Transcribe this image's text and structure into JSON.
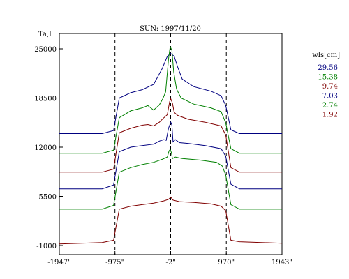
{
  "chart_data": {
    "type": "line",
    "title": "SUN: 1997/11/20",
    "ylabel": "Ta,I",
    "xlabel": "",
    "xlim": [
      -1947,
      1943
    ],
    "ylim": [
      -1000,
      25000
    ],
    "x_ticks": [
      {
        "value": -1947,
        "label": "-1947\""
      },
      {
        "value": -975,
        "label": "-975\""
      },
      {
        "value": -2,
        "label": "-2\""
      },
      {
        "value": 970,
        "label": "970\""
      },
      {
        "value": 1943,
        "label": "1943\""
      }
    ],
    "y_ticks": [
      {
        "value": 25000,
        "label": "25000"
      },
      {
        "value": 18500,
        "label": "18500"
      },
      {
        "value": 12000,
        "label": "12000"
      },
      {
        "value": 5500,
        "label": "5500"
      },
      {
        "value": -1000,
        "label": "-1000"
      }
    ],
    "vlines": [
      -975,
      -2,
      970
    ],
    "legend": {
      "title": "wls[cm]",
      "placement": "right"
    },
    "series": [
      {
        "name": "29.56",
        "color": "#000080",
        "points": [
          [
            -1947,
            13800
          ],
          [
            -1200,
            13800
          ],
          [
            -1000,
            14200
          ],
          [
            -900,
            18500
          ],
          [
            -700,
            19200
          ],
          [
            -500,
            19600
          ],
          [
            -300,
            20300
          ],
          [
            -150,
            22400
          ],
          [
            -60,
            24000
          ],
          [
            -2,
            24400
          ],
          [
            60,
            24000
          ],
          [
            120,
            22600
          ],
          [
            200,
            21000
          ],
          [
            400,
            20000
          ],
          [
            700,
            19400
          ],
          [
            880,
            18800
          ],
          [
            960,
            17500
          ],
          [
            1050,
            14300
          ],
          [
            1200,
            13800
          ],
          [
            1943,
            13800
          ]
        ]
      },
      {
        "name": "15.38",
        "color": "#008000",
        "points": [
          [
            -1947,
            11200
          ],
          [
            -1200,
            11200
          ],
          [
            -1000,
            11600
          ],
          [
            -900,
            15900
          ],
          [
            -700,
            16800
          ],
          [
            -500,
            17200
          ],
          [
            -400,
            17500
          ],
          [
            -300,
            16900
          ],
          [
            -200,
            17600
          ],
          [
            -140,
            18400
          ],
          [
            -90,
            19300
          ],
          [
            -40,
            23600
          ],
          [
            -10,
            25300
          ],
          [
            20,
            24800
          ],
          [
            50,
            22000
          ],
          [
            100,
            19700
          ],
          [
            180,
            18500
          ],
          [
            400,
            17700
          ],
          [
            700,
            17200
          ],
          [
            880,
            16700
          ],
          [
            960,
            15200
          ],
          [
            1050,
            11800
          ],
          [
            1200,
            11200
          ],
          [
            1943,
            11200
          ]
        ]
      },
      {
        "name": "9.74",
        "color": "#800000",
        "points": [
          [
            -1947,
            8700
          ],
          [
            -1200,
            8700
          ],
          [
            -1000,
            9100
          ],
          [
            -900,
            13900
          ],
          [
            -700,
            14500
          ],
          [
            -500,
            14900
          ],
          [
            -400,
            15000
          ],
          [
            -300,
            14800
          ],
          [
            -200,
            15300
          ],
          [
            -120,
            15900
          ],
          [
            -60,
            16300
          ],
          [
            -20,
            18000
          ],
          [
            0,
            18400
          ],
          [
            30,
            17800
          ],
          [
            60,
            16600
          ],
          [
            120,
            16200
          ],
          [
            300,
            15700
          ],
          [
            600,
            15300
          ],
          [
            880,
            14800
          ],
          [
            960,
            13600
          ],
          [
            1050,
            9300
          ],
          [
            1200,
            8700
          ],
          [
            1943,
            8700
          ]
        ]
      },
      {
        "name": "7.03",
        "color": "#000080",
        "points": [
          [
            -1947,
            6500
          ],
          [
            -1200,
            6500
          ],
          [
            -1000,
            7000
          ],
          [
            -900,
            11400
          ],
          [
            -700,
            12000
          ],
          [
            -500,
            12200
          ],
          [
            -300,
            12400
          ],
          [
            -200,
            12800
          ],
          [
            -120,
            13000
          ],
          [
            -80,
            12900
          ],
          [
            -40,
            14500
          ],
          [
            0,
            15300
          ],
          [
            20,
            14900
          ],
          [
            40,
            12700
          ],
          [
            80,
            13000
          ],
          [
            150,
            12600
          ],
          [
            300,
            12500
          ],
          [
            600,
            12200
          ],
          [
            880,
            11800
          ],
          [
            960,
            10800
          ],
          [
            1050,
            7100
          ],
          [
            1200,
            6500
          ],
          [
            1943,
            6500
          ]
        ]
      },
      {
        "name": "2.74",
        "color": "#008000",
        "points": [
          [
            -1947,
            3800
          ],
          [
            -1200,
            3800
          ],
          [
            -1000,
            4300
          ],
          [
            -900,
            8700
          ],
          [
            -700,
            9300
          ],
          [
            -500,
            9700
          ],
          [
            -300,
            10000
          ],
          [
            -150,
            10400
          ],
          [
            -60,
            10700
          ],
          [
            -30,
            11500
          ],
          [
            -10,
            11700
          ],
          [
            10,
            11300
          ],
          [
            30,
            10500
          ],
          [
            80,
            10700
          ],
          [
            200,
            10500
          ],
          [
            500,
            10300
          ],
          [
            800,
            10000
          ],
          [
            900,
            9500
          ],
          [
            960,
            8300
          ],
          [
            1050,
            4400
          ],
          [
            1200,
            3800
          ],
          [
            1943,
            3800
          ]
        ]
      },
      {
        "name": "1.92",
        "color": "#800000",
        "points": [
          [
            -1947,
            -800
          ],
          [
            -1200,
            -600
          ],
          [
            -1000,
            -300
          ],
          [
            -900,
            3800
          ],
          [
            -700,
            4200
          ],
          [
            -500,
            4400
          ],
          [
            -300,
            4600
          ],
          [
            -120,
            4900
          ],
          [
            -40,
            5100
          ],
          [
            0,
            5400
          ],
          [
            40,
            5000
          ],
          [
            150,
            4800
          ],
          [
            400,
            4700
          ],
          [
            700,
            4500
          ],
          [
            880,
            4200
          ],
          [
            960,
            3600
          ],
          [
            1050,
            -300
          ],
          [
            1200,
            -500
          ],
          [
            1943,
            -700
          ]
        ]
      }
    ]
  }
}
